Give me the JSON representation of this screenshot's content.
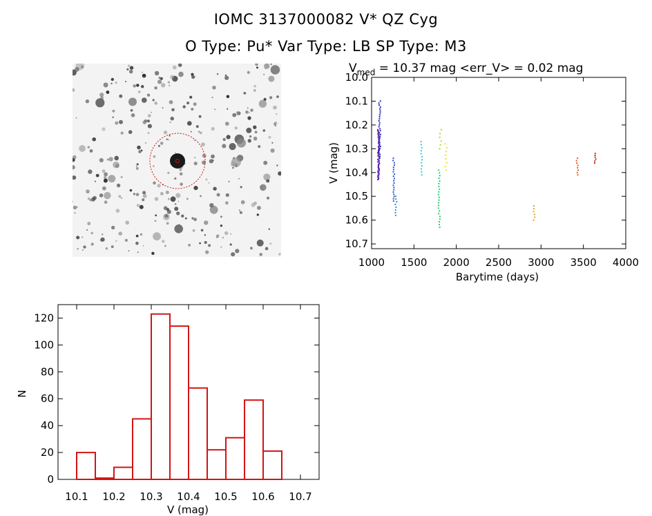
{
  "header": {
    "line1": "IOMC 3137000082    V* QZ Cyg",
    "line2": "O Type: Pu*   Var Type: LB   SP Type: M3"
  },
  "colors": {
    "histogram": "#d21414",
    "finder_circle": "#cc1111",
    "axes": "#000000"
  },
  "chart_data": [
    {
      "type": "scatter",
      "title_parts": {
        "v": "V",
        "sub": "med",
        "rest": " = 10.37 mag <err_V> = 0.02 mag"
      },
      "xlabel": "Barytime (days)",
      "ylabel": "V (mag)",
      "xlim": [
        1000,
        4000
      ],
      "ylim": [
        10.0,
        10.72
      ],
      "y_inverted": true,
      "x_ticks": [
        1000,
        1500,
        2000,
        2500,
        3000,
        3500,
        4000
      ],
      "y_ticks": [
        "10.0",
        "10.1",
        "10.2",
        "10.3",
        "10.4",
        "10.5",
        "10.6",
        "10.7"
      ],
      "series": [
        {
          "color": "#5a1fa8",
          "x": 1075,
          "y_min": 10.22,
          "y_max": 10.43,
          "n": 60
        },
        {
          "color": "#2a2ab8",
          "x": 1088,
          "y_min": 10.1,
          "y_max": 10.34,
          "n": 30
        },
        {
          "color": "#2850c8",
          "x": 1255,
          "y_min": 10.34,
          "y_max": 10.52,
          "n": 20
        },
        {
          "color": "#2a90c8",
          "x": 1280,
          "y_min": 10.5,
          "y_max": 10.58,
          "n": 8
        },
        {
          "color": "#20d0d8",
          "x": 1580,
          "y_min": 10.27,
          "y_max": 10.41,
          "n": 12
        },
        {
          "color": "#22c878",
          "x": 1790,
          "y_min": 10.39,
          "y_max": 10.63,
          "n": 22
        },
        {
          "color": "#a0e020",
          "x": 1805,
          "y_min": 10.22,
          "y_max": 10.3,
          "n": 6
        },
        {
          "color": "#e8e020",
          "x": 1870,
          "y_min": 10.28,
          "y_max": 10.39,
          "n": 8
        },
        {
          "color": "#e8a020",
          "x": 2910,
          "y_min": 10.54,
          "y_max": 10.6,
          "n": 6
        },
        {
          "color": "#e06020",
          "x": 3420,
          "y_min": 10.34,
          "y_max": 10.41,
          "n": 8
        },
        {
          "color": "#d02020",
          "x": 3630,
          "y_min": 10.32,
          "y_max": 10.36,
          "n": 6
        }
      ]
    },
    {
      "type": "bar",
      "subtype": "histogram",
      "xlabel": "V (mag)",
      "ylabel": "N",
      "xlim": [
        10.05,
        10.75
      ],
      "ylim": [
        0,
        130
      ],
      "x_ticks": [
        "10.1",
        "10.2",
        "10.3",
        "10.4",
        "10.5",
        "10.6",
        "10.7"
      ],
      "y_ticks": [
        "0",
        "20",
        "40",
        "60",
        "80",
        "100",
        "120"
      ],
      "bin_width": 0.05,
      "bin_starts": [
        10.1,
        10.15,
        10.2,
        10.25,
        10.3,
        10.35,
        10.4,
        10.45,
        10.5,
        10.55,
        10.6
      ],
      "values": [
        20,
        1,
        9,
        45,
        123,
        114,
        68,
        22,
        31,
        59,
        21
      ]
    }
  ]
}
